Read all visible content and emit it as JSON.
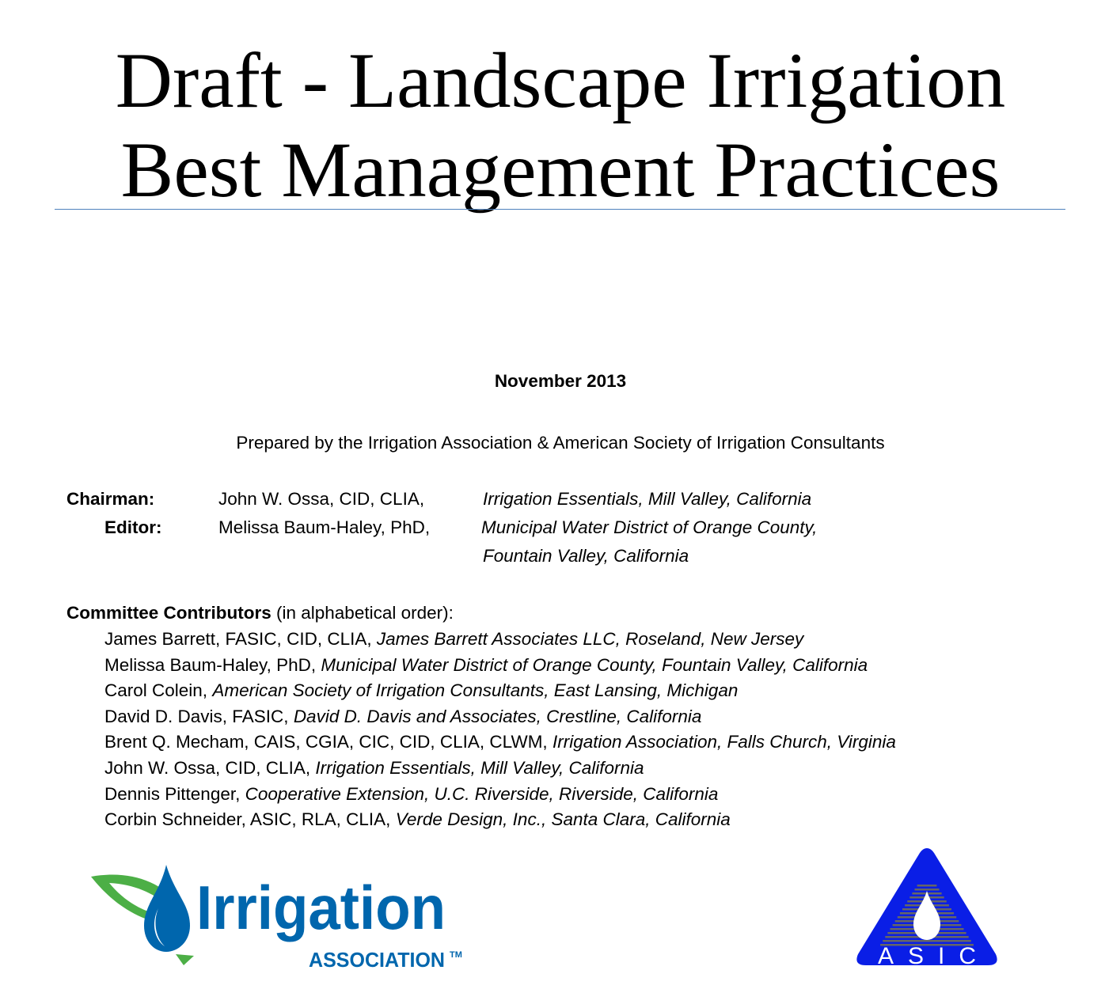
{
  "title": {
    "line1": "Draft - Landscape Irrigation",
    "line2": "Best Management Practices"
  },
  "date": "November 2013",
  "prepared_by": "Prepared by the Irrigation Association & American Society of Irrigation Consultants",
  "chairman": {
    "label": "Chairman:",
    "name": "John W. Ossa, CID, CLIA,",
    "affiliation": "Irrigation Essentials, Mill Valley, California"
  },
  "editor": {
    "label": "Editor:",
    "name": "Melissa Baum-Haley, PhD,",
    "affiliation_line1": "Municipal Water District of Orange County,",
    "affiliation_line2": "Fountain Valley, California"
  },
  "committee": {
    "heading": "Committee Contributors",
    "heading_note": " (in alphabetical order):",
    "members": [
      {
        "name": "James Barrett, FASIC, CID, CLIA, ",
        "affiliation": "James Barrett Associates LLC, Roseland, New Jersey"
      },
      {
        "name": "Melissa Baum-Haley, PhD, ",
        "affiliation": "Municipal Water District of Orange County, Fountain Valley, California"
      },
      {
        "name": "Carol Colein, ",
        "affiliation": "American Society of Irrigation Consultants, East Lansing, Michigan"
      },
      {
        "name": "David D. Davis, FASIC, ",
        "affiliation": "David D. Davis and Associates, Crestline, California"
      },
      {
        "name": "Brent Q. Mecham, CAIS, CGIA, CIC, CID, CLIA, CLWM, ",
        "affiliation": "Irrigation Association, Falls Church, Virginia"
      },
      {
        "name": "John W. Ossa, CID, CLIA, ",
        "affiliation": "Irrigation Essentials, Mill Valley, California"
      },
      {
        "name": "Dennis Pittenger, ",
        "affiliation": "Cooperative Extension, U.C. Riverside, Riverside, California"
      },
      {
        "name": "Corbin Schneider, ASIC, RLA, CLIA, ",
        "affiliation": "Verde Design, Inc., Santa Clara, California"
      }
    ]
  },
  "logos": {
    "ia": {
      "word": "Irrigation",
      "sub": "ASSOCIATION",
      "tm": "™",
      "blue": "#0066ad",
      "green": "#4caf46"
    },
    "asic": {
      "text": "ASIC",
      "blue": "#0a1ee6"
    }
  },
  "colors": {
    "rule": "#4f81bd"
  }
}
